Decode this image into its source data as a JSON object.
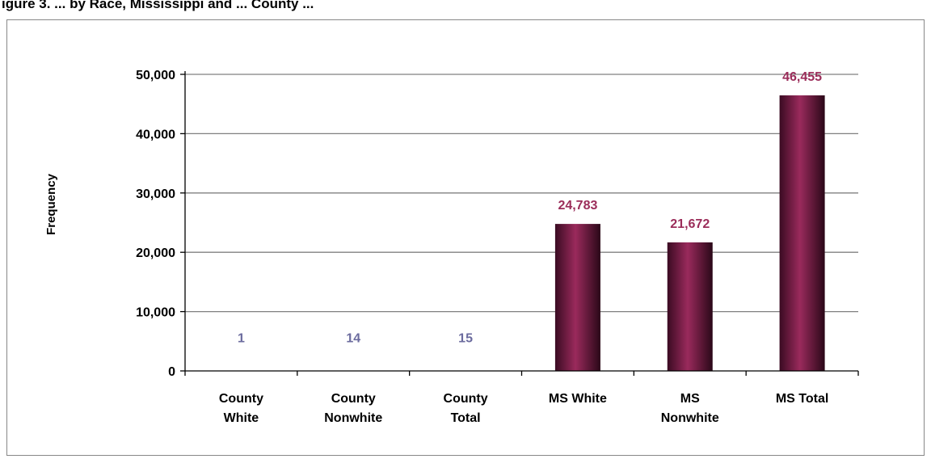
{
  "figure_title": "igure 3.  ...  by Race, Mississippi and ... County ...",
  "chart_data": {
    "type": "bar",
    "title": "",
    "xlabel": "",
    "ylabel": "Frequency",
    "ylim": [
      0,
      50000
    ],
    "yticks": [
      0,
      10000,
      20000,
      30000,
      40000,
      50000
    ],
    "ytick_labels": [
      "0",
      "10,000",
      "20,000",
      "30,000",
      "40,000",
      "50,000"
    ],
    "grid": true,
    "legend": "none",
    "categories": [
      [
        "County",
        "White"
      ],
      [
        "County",
        "Nonwhite"
      ],
      [
        "County",
        "Total"
      ],
      [
        "MS White"
      ],
      [
        "MS",
        "Nonwhite"
      ],
      [
        "MS Total"
      ]
    ],
    "values": [
      1,
      14,
      15,
      24783,
      21672,
      46455
    ],
    "data_labels": [
      "1",
      "14",
      "15",
      "24,783",
      "21,672",
      "46,455"
    ],
    "colors": {
      "bar": "#8b1e4f",
      "bar_dark": "#3a0b22",
      "county_label": "#6b6b9e",
      "ms_label": "#9b2d5a",
      "grid": "#808080"
    }
  }
}
